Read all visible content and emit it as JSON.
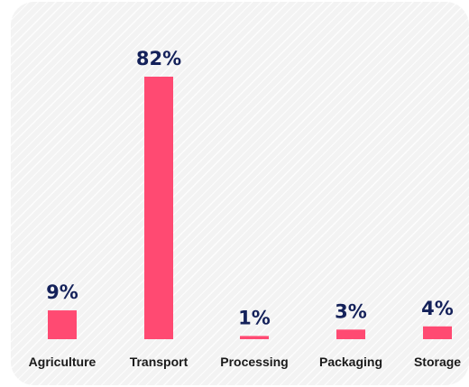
{
  "chart_data": {
    "type": "bar",
    "categories": [
      "Agriculture",
      "Transport",
      "Processing",
      "Packaging",
      "Storage"
    ],
    "values": [
      9,
      82,
      1,
      3,
      4
    ],
    "value_labels": [
      "9%",
      "82%",
      "1%",
      "3%",
      "4%"
    ],
    "unit": "%",
    "ylim": [
      0,
      82
    ],
    "grid": false,
    "legend": "none",
    "colors": {
      "bar": "#ff4a72",
      "value_label": "#14215a",
      "category_label": "#1a1a1a",
      "background": "#f3f3f3"
    }
  }
}
